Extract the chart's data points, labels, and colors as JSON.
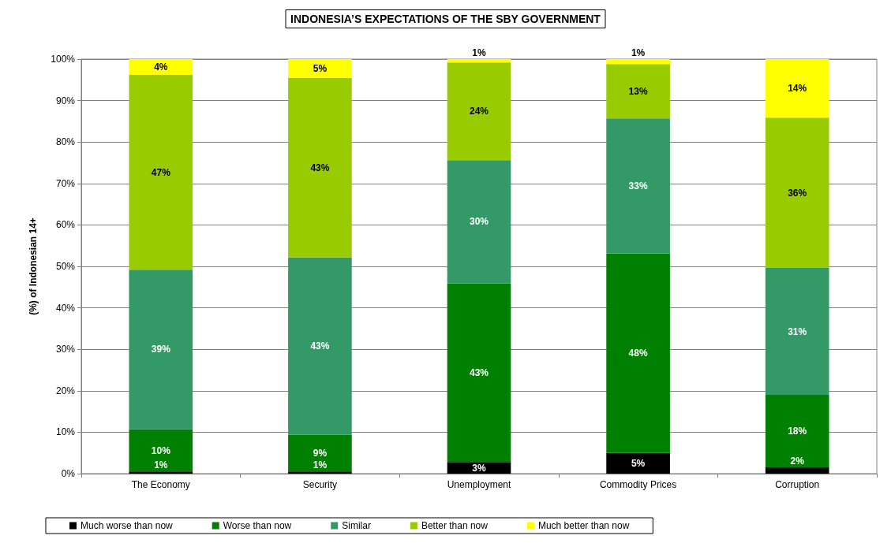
{
  "chart_data": {
    "type": "bar",
    "stacked": true,
    "title": "INDONESIA’S EXPECTATIONS OF THE SBY GOVERNMENT",
    "ylabel": "(%) of Indonesian 14+",
    "categories": [
      "The Economy",
      "Security",
      "Unemployment",
      "Commodity Prices",
      "Corruption"
    ],
    "series": [
      {
        "name": "Much worse than now",
        "color": "#000000",
        "values": [
          0.5,
          0.5,
          2.8,
          5.0,
          1.5
        ],
        "value_labels": [
          "1%",
          "1%",
          "3%",
          "5%",
          "2%"
        ]
      },
      {
        "name": "Worse than now",
        "color": "#008000",
        "values": [
          10.2,
          8.9,
          43.1,
          48.1,
          17.5
        ],
        "value_labels": [
          "10%",
          "9%",
          "43%",
          "48%",
          "18%"
        ]
      },
      {
        "name": "Similar",
        "color": "#339966",
        "values": [
          38.5,
          42.8,
          29.7,
          32.6,
          30.6
        ],
        "value_labels": [
          "39%",
          "43%",
          "30%",
          "33%",
          "31%"
        ]
      },
      {
        "name": "Better than now",
        "color": "#99cc00",
        "values": [
          47.0,
          43.3,
          23.6,
          13.1,
          36.3
        ],
        "value_labels": [
          "47%",
          "43%",
          "24%",
          "13%",
          "36%"
        ]
      },
      {
        "name": "Much better than now",
        "color": "#ffff00",
        "values": [
          3.8,
          4.5,
          0.8,
          1.2,
          14.1
        ],
        "value_labels": [
          "4%",
          "5%",
          "1%",
          "1%",
          "14%"
        ]
      }
    ],
    "ylim": [
      0,
      100
    ],
    "yticks": [
      {
        "value": 0,
        "label": "0%"
      },
      {
        "value": 10,
        "label": "10%"
      },
      {
        "value": 20,
        "label": "20%"
      },
      {
        "value": 30,
        "label": "30%"
      },
      {
        "value": 40,
        "label": "40%"
      },
      {
        "value": 50,
        "label": "50%"
      },
      {
        "value": 60,
        "label": "60%"
      },
      {
        "value": 70,
        "label": "70%"
      },
      {
        "value": 80,
        "label": "80%"
      },
      {
        "value": 90,
        "label": "90%"
      },
      {
        "value": 100,
        "label": "100%"
      }
    ],
    "grid": "y",
    "legend": "bottom"
  }
}
